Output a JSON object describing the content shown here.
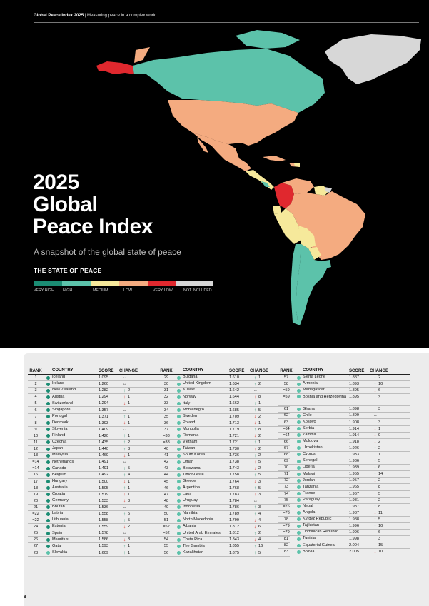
{
  "header": {
    "report": "Global Peace Index 2025",
    "separator": " | ",
    "tagline": "Measuring peace in a complex world"
  },
  "title": {
    "line1": "2025",
    "line2": "Global",
    "line3": "Peace Index"
  },
  "subtitle": "A snapshot of the global state of peace",
  "state_label": "THE STATE OF PEACE",
  "legend": [
    {
      "label": "VERY HIGH",
      "color": "#1b8c73"
    },
    {
      "label": "HIGH",
      "color": "#5cc2aa"
    },
    {
      "label": "MEDIUM",
      "color": "#f6e99b"
    },
    {
      "label": "LOW",
      "color": "#f4ab80"
    },
    {
      "label": "VERY LOW",
      "color": "#e0282e"
    },
    {
      "label": "NOT INCLUDED",
      "color": "#d7d7d7"
    }
  ],
  "colors": {
    "very_high": "#1b8c73",
    "high": "#5cc2aa",
    "medium": "#f6e99b",
    "low": "#f4ab80",
    "very_low": "#e0282e",
    "not_included": "#d7d7d7"
  },
  "table_headers": {
    "rank": "RANK",
    "country": "COUNTRY",
    "score": "SCORE",
    "change": "CHANGE"
  },
  "columns": [
    [
      {
        "rank": "1",
        "country": "Iceland",
        "score": "1.095",
        "dir": "same",
        "chg": ""
      },
      {
        "rank": "2",
        "country": "Ireland",
        "score": "1.260",
        "dir": "same",
        "chg": ""
      },
      {
        "rank": "3",
        "country": "New Zealand",
        "score": "1.282",
        "dir": "up",
        "chg": "2"
      },
      {
        "rank": "4",
        "country": "Austria",
        "score": "1.294",
        "dir": "down",
        "chg": "1"
      },
      {
        "rank": "5",
        "country": "Switzerland",
        "score": "1.294",
        "dir": "down",
        "chg": "1"
      },
      {
        "rank": "6",
        "country": "Singapore",
        "score": "1.357",
        "dir": "same",
        "chg": ""
      },
      {
        "rank": "7",
        "country": "Portugal",
        "score": "1.371",
        "dir": "up",
        "chg": "1"
      },
      {
        "rank": "8",
        "country": "Denmark",
        "score": "1.393",
        "dir": "down",
        "chg": "1"
      },
      {
        "rank": "9",
        "country": "Slovenia",
        "score": "1.409",
        "dir": "same",
        "chg": ""
      },
      {
        "rank": "10",
        "country": "Finland",
        "score": "1.420",
        "dir": "up",
        "chg": "1"
      },
      {
        "rank": "11",
        "country": "Czechia",
        "score": "1.435",
        "dir": "up",
        "chg": "2"
      },
      {
        "rank": "12",
        "country": "Japan",
        "score": "1.440",
        "dir": "up",
        "chg": "3"
      },
      {
        "rank": "13",
        "country": "Malaysia",
        "score": "1.469",
        "dir": "down",
        "chg": "1"
      },
      {
        "rank": "=14",
        "country": "Netherlands",
        "score": "1.491",
        "dir": "same",
        "chg": ""
      },
      {
        "rank": "=14",
        "country": "Canada",
        "score": "1.491",
        "dir": "up",
        "chg": "5"
      },
      {
        "rank": "16",
        "country": "Belgium",
        "score": "1.492",
        "dir": "up",
        "chg": "4"
      },
      {
        "rank": "17",
        "country": "Hungary",
        "score": "1.500",
        "dir": "down",
        "chg": "1"
      },
      {
        "rank": "18",
        "country": "Australia",
        "score": "1.505",
        "dir": "up",
        "chg": "1"
      },
      {
        "rank": "19",
        "country": "Croatia",
        "score": "1.519",
        "dir": "down",
        "chg": "1"
      },
      {
        "rank": "20",
        "country": "Germany",
        "score": "1.533",
        "dir": "down",
        "chg": "3"
      },
      {
        "rank": "21",
        "country": "Bhutan",
        "score": "1.536",
        "dir": "same",
        "chg": ""
      },
      {
        "rank": "=22",
        "country": "Latvia",
        "score": "1.558",
        "dir": "up",
        "chg": "5"
      },
      {
        "rank": "=22",
        "country": "Lithuania",
        "score": "1.558",
        "dir": "up",
        "chg": "5"
      },
      {
        "rank": "24",
        "country": "Estonia",
        "score": "1.559",
        "dir": "down",
        "chg": "2"
      },
      {
        "rank": "25",
        "country": "Spain",
        "score": "1.578",
        "dir": "same",
        "chg": ""
      },
      {
        "rank": "26",
        "country": "Mauritius",
        "score": "1.586",
        "dir": "down",
        "chg": "3"
      },
      {
        "rank": "27",
        "country": "Qatar",
        "score": "1.593",
        "dir": "up",
        "chg": "1"
      },
      {
        "rank": "28",
        "country": "Slovakia",
        "score": "1.609",
        "dir": "up",
        "chg": "1"
      }
    ],
    [
      {
        "rank": "29",
        "country": "Bulgaria",
        "score": "1.610",
        "dir": "up",
        "chg": "1"
      },
      {
        "rank": "30",
        "country": "United Kingdom",
        "score": "1.634",
        "dir": "up",
        "chg": "2"
      },
      {
        "rank": "31",
        "country": "Kuwait",
        "score": "1.642",
        "dir": "same",
        "chg": ""
      },
      {
        "rank": "32",
        "country": "Norway",
        "score": "1.644",
        "dir": "down",
        "chg": "8"
      },
      {
        "rank": "33",
        "country": "Italy",
        "score": "1.662",
        "dir": "up",
        "chg": "1"
      },
      {
        "rank": "34",
        "country": "Montenegro",
        "score": "1.685",
        "dir": "up",
        "chg": "5"
      },
      {
        "rank": "35",
        "country": "Sweden",
        "score": "1.709",
        "dir": "down",
        "chg": "2"
      },
      {
        "rank": "36",
        "country": "Poland",
        "score": "1.713",
        "dir": "down",
        "chg": "1"
      },
      {
        "rank": "37",
        "country": "Mongolia",
        "score": "1.719",
        "dir": "up",
        "chg": "8"
      },
      {
        "rank": "=38",
        "country": "Romania",
        "score": "1.721",
        "dir": "down",
        "chg": "2"
      },
      {
        "rank": "=38",
        "country": "Vietnam",
        "score": "1.721",
        "dir": "up",
        "chg": "1"
      },
      {
        "rank": "40",
        "country": "Taiwan",
        "score": "1.730",
        "dir": "down",
        "chg": "2"
      },
      {
        "rank": "41",
        "country": "South Korea",
        "score": "1.736",
        "dir": "up",
        "chg": "2"
      },
      {
        "rank": "42",
        "country": "Oman",
        "score": "1.738",
        "dir": "down",
        "chg": "5"
      },
      {
        "rank": "43",
        "country": "Botswana",
        "score": "1.743",
        "dir": "down",
        "chg": "2"
      },
      {
        "rank": "44",
        "country": "Timor-Leste",
        "score": "1.758",
        "dir": "up",
        "chg": "5"
      },
      {
        "rank": "45",
        "country": "Greece",
        "score": "1.764",
        "dir": "down",
        "chg": "3"
      },
      {
        "rank": "46",
        "country": "Argentina",
        "score": "1.768",
        "dir": "up",
        "chg": "5"
      },
      {
        "rank": "47",
        "country": "Laos",
        "score": "1.783",
        "dir": "down",
        "chg": "3"
      },
      {
        "rank": "48",
        "country": "Uruguay",
        "score": "1.784",
        "dir": "same",
        "chg": ""
      },
      {
        "rank": "49",
        "country": "Indonesia",
        "score": "1.786",
        "dir": "up",
        "chg": "3"
      },
      {
        "rank": "50",
        "country": "Namibia",
        "score": "1.789",
        "dir": "up",
        "chg": "4"
      },
      {
        "rank": "51",
        "country": "North Macedonia",
        "score": "1.799",
        "dir": "down",
        "chg": "4"
      },
      {
        "rank": "=52",
        "country": "Albania",
        "score": "1.812",
        "dir": "down",
        "chg": "6"
      },
      {
        "rank": "=52",
        "country": "United Arab Emirates",
        "score": "1.812",
        "dir": "up",
        "chg": "2"
      },
      {
        "rank": "54",
        "country": "Costa Rica",
        "score": "1.843",
        "dir": "down",
        "chg": "4"
      },
      {
        "rank": "55",
        "country": "The Gambia",
        "score": "1.855",
        "dir": "up",
        "chg": "16"
      },
      {
        "rank": "56",
        "country": "Kazakhstan",
        "score": "1.875",
        "dir": "up",
        "chg": "5"
      }
    ],
    [
      {
        "rank": "57",
        "country": "Sierra Leone",
        "score": "1.887",
        "dir": "up",
        "chg": "2"
      },
      {
        "rank": "58",
        "country": "Armenia",
        "score": "1.893",
        "dir": "up",
        "chg": "10"
      },
      {
        "rank": "=59",
        "country": "Madagascar",
        "score": "1.895",
        "dir": "down",
        "chg": "6"
      },
      {
        "rank": "=59",
        "country": "Bosnia and Herzegovina",
        "score": "1.895",
        "dir": "down",
        "chg": "3",
        "tall": true
      },
      {
        "rank": "61",
        "country": "Ghana",
        "score": "1.898",
        "dir": "down",
        "chg": "3"
      },
      {
        "rank": "62",
        "country": "Chile",
        "score": "1.899",
        "dir": "same",
        "chg": ""
      },
      {
        "rank": "63",
        "country": "Kosovo",
        "score": "1.908",
        "dir": "down",
        "chg": "3"
      },
      {
        "rank": "=64",
        "country": "Serbia",
        "score": "1.914",
        "dir": "down",
        "chg": "1"
      },
      {
        "rank": "=64",
        "country": "Zambia",
        "score": "1.914",
        "dir": "down",
        "chg": "9"
      },
      {
        "rank": "66",
        "country": "Moldova",
        "score": "1.918",
        "dir": "down",
        "chg": "2"
      },
      {
        "rank": "67",
        "country": "Uzbekistan",
        "score": "1.926",
        "dir": "up",
        "chg": "2"
      },
      {
        "rank": "68",
        "country": "Cyprus",
        "score": "1.933",
        "dir": "down",
        "chg": "1"
      },
      {
        "rank": "69",
        "country": "Senegal",
        "score": "1.936",
        "dir": "up",
        "chg": "5"
      },
      {
        "rank": "70",
        "country": "Liberia",
        "score": "1.939",
        "dir": "up",
        "chg": "6"
      },
      {
        "rank": "71",
        "country": "Malawi",
        "score": "1.955",
        "dir": "up",
        "chg": "14"
      },
      {
        "rank": "72",
        "country": "Jordan",
        "score": "1.957",
        "dir": "down",
        "chg": "2"
      },
      {
        "rank": "73",
        "country": "Tanzania",
        "score": "1.965",
        "dir": "down",
        "chg": "8"
      },
      {
        "rank": "74",
        "country": "France",
        "score": "1.967",
        "dir": "up",
        "chg": "5"
      },
      {
        "rank": "75",
        "country": "Paraguay",
        "score": "1.981",
        "dir": "up",
        "chg": "2"
      },
      {
        "rank": "=76",
        "country": "Nepal",
        "score": "1.987",
        "dir": "up",
        "chg": "8"
      },
      {
        "rank": "=76",
        "country": "Angola",
        "score": "1.987",
        "dir": "down",
        "chg": "11"
      },
      {
        "rank": "78",
        "country": "Kyrgyz Republic",
        "score": "1.988",
        "dir": "up",
        "chg": "5"
      },
      {
        "rank": "=79",
        "country": "Tajikistan",
        "score": "1.996",
        "dir": "up",
        "chg": "10"
      },
      {
        "rank": "=79",
        "country": "Dominican Republic",
        "score": "1.996",
        "dir": "up",
        "chg": "6"
      },
      {
        "rank": "81",
        "country": "Tunisia",
        "score": "1.998",
        "dir": "down",
        "chg": "3"
      },
      {
        "rank": "82",
        "country": "Equatorial Guinea",
        "score": "2.004",
        "dir": "up",
        "chg": "15"
      },
      {
        "rank": "83",
        "country": "Bolivia",
        "score": "2.005",
        "dir": "down",
        "chg": "10"
      }
    ]
  ],
  "page_number": "8"
}
